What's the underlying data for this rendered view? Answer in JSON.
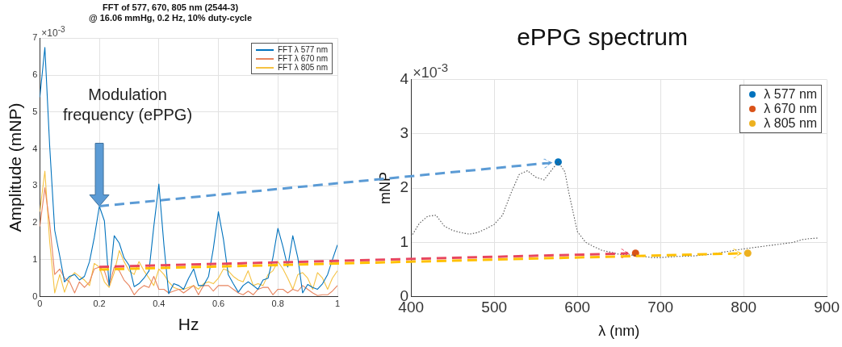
{
  "chart_data": [
    {
      "type": "line",
      "title": "FFT of 577, 670, 805 nm (2544-3)",
      "subtitle": "@ 16.06 mmHg, 0.2 Hz, 10% duty-cycle",
      "xlabel": "Hz",
      "ylabel": "Amplitude (mNP)",
      "x": [
        0,
        0.017,
        0.033,
        0.05,
        0.067,
        0.083,
        0.1,
        0.117,
        0.133,
        0.15,
        0.167,
        0.183,
        0.2,
        0.217,
        0.233,
        0.25,
        0.267,
        0.283,
        0.3,
        0.317,
        0.333,
        0.35,
        0.367,
        0.383,
        0.4,
        0.417,
        0.433,
        0.45,
        0.467,
        0.483,
        0.5,
        0.517,
        0.533,
        0.55,
        0.567,
        0.583,
        0.6,
        0.617,
        0.633,
        0.65,
        0.667,
        0.683,
        0.7,
        0.717,
        0.733,
        0.75,
        0.767,
        0.783,
        0.8,
        0.817,
        0.833,
        0.85,
        0.867,
        0.883,
        0.9,
        0.917,
        0.933,
        0.95,
        0.967,
        0.983,
        1
      ],
      "series": [
        {
          "name": "FFT λ 577 nm",
          "color": "#0072bd",
          "values": [
            5.4,
            6.75,
            4.1,
            1.8,
            1.1,
            0.4,
            0.55,
            0.6,
            0.45,
            0.55,
            0.95,
            1.6,
            2.45,
            2.05,
            0.3,
            1.65,
            1.45,
            1.05,
            0.85,
            0.27,
            0.35,
            0.5,
            0.7,
            1.9,
            3.05,
            1.4,
            0.08,
            0.35,
            0.3,
            0.2,
            0.5,
            0.75,
            0.3,
            0.3,
            0.55,
            1.3,
            2.3,
            1.55,
            0.6,
            0.35,
            0.12,
            0.3,
            0.4,
            0.3,
            0.2,
            0.45,
            0.5,
            1.05,
            1.85,
            1.35,
            0.8,
            1.65,
            1.05,
            0.1,
            0.33,
            0.25,
            0.2,
            0.35,
            0.6,
            1.0,
            1.4
          ]
        },
        {
          "name": "FFT λ 670 nm",
          "color": "#e8845e",
          "values": [
            1.9,
            2.95,
            2.0,
            0.6,
            0.75,
            0.5,
            0.4,
            0.1,
            0.4,
            0.25,
            0.4,
            0.75,
            0.8,
            0.7,
            0.3,
            0.8,
            0.7,
            0.45,
            0.3,
            0.05,
            0.2,
            0.3,
            0.25,
            0.55,
            0.2,
            0.2,
            0.1,
            0.15,
            0.2,
            0.1,
            0.2,
            0.3,
            0.05,
            0.3,
            0.3,
            0.15,
            0.3,
            0.3,
            0.3,
            0.2,
            0.1,
            0.05,
            0.15,
            0.05,
            0.2,
            0.25,
            0.25,
            0.05,
            0.2,
            0.2,
            0.1,
            0.2,
            0.15,
            0.3,
            0.2,
            0.1,
            0.03,
            0.05,
            0.05,
            0.15,
            0.3
          ]
        },
        {
          "name": "FFT λ 805 nm",
          "color": "#f5c242",
          "values": [
            2.3,
            3.4,
            1.5,
            0.1,
            0.6,
            0.12,
            0.5,
            0.65,
            0.55,
            0.45,
            0.3,
            0.9,
            0.8,
            0.4,
            0.25,
            0.65,
            1.25,
            0.95,
            0.7,
            0.6,
            0.95,
            0.7,
            0.5,
            0.3,
            0.75,
            0.6,
            0.4,
            0.25,
            0.2,
            0.2,
            0.25,
            0.3,
            0.2,
            0.35,
            0.4,
            0.35,
            0.5,
            0.75,
            0.7,
            0.55,
            0.45,
            0.4,
            0.7,
            0.3,
            0.35,
            0.3,
            0.6,
            0.7,
            0.95,
            0.75,
            0.5,
            0.2,
            0.6,
            0.65,
            0.5,
            0.2,
            0.65,
            0.5,
            0.2,
            0.5,
            0.7
          ]
        }
      ],
      "xlim": [
        0,
        1
      ],
      "xticks": [
        0,
        0.2,
        0.4,
        0.6,
        0.8,
        1
      ],
      "ylim": [
        0,
        7
      ],
      "yticks": [
        0,
        1,
        2,
        3,
        4,
        5,
        6,
        7
      ],
      "grid": true,
      "legend": "top right",
      "marker": "none",
      "annotations": [
        "×10$^{-3}$",
        "Modulation frequency (ePPG)"
      ]
    },
    {
      "type": "scatter",
      "title": "ePPG spectrum",
      "xlabel": "λ (nm)",
      "ylabel": "mNP",
      "series": [
        {
          "type": "line",
          "color": "#555555",
          "line_style": "dotted",
          "marker": "none",
          "x": [
            400,
            410,
            420,
            430,
            440,
            450,
            460,
            470,
            480,
            490,
            500,
            510,
            520,
            530,
            540,
            550,
            560,
            570,
            577,
            585,
            590,
            600,
            610,
            620,
            630,
            640,
            650,
            660,
            670,
            680,
            690,
            700,
            720,
            740,
            760,
            780,
            800,
            820,
            840,
            860,
            870,
            880,
            890
          ],
          "values": [
            1.1,
            1.35,
            1.48,
            1.5,
            1.3,
            1.22,
            1.18,
            1.15,
            1.18,
            1.25,
            1.33,
            1.5,
            1.9,
            2.25,
            2.32,
            2.2,
            2.15,
            2.35,
            2.48,
            2.3,
            1.9,
            1.2,
            1.0,
            0.92,
            0.85,
            0.82,
            0.78,
            0.77,
            0.76,
            0.74,
            0.72,
            0.72,
            0.74,
            0.75,
            0.78,
            0.83,
            0.88,
            0.92,
            0.96,
            1.0,
            1.05,
            1.07,
            1.08
          ]
        },
        {
          "name": "λ 577 nm",
          "color": "#0072bd",
          "x": [
            577
          ],
          "values": [
            2.48
          ]
        },
        {
          "name": "λ 670 nm",
          "color": "#d95319",
          "x": [
            670
          ],
          "values": [
            0.8
          ]
        },
        {
          "name": "λ 805 nm",
          "color": "#edb120",
          "x": [
            805
          ],
          "values": [
            0.8
          ]
        }
      ],
      "xlim": [
        400,
        900
      ],
      "xticks": [
        400,
        500,
        600,
        700,
        800,
        900
      ],
      "ylim": [
        0,
        4
      ],
      "yticks": [
        0,
        1,
        2,
        3,
        4
      ],
      "grid": true,
      "legend": "top right",
      "marker": "circle",
      "annotations": [
        "×10$^{-3}$"
      ]
    }
  ]
}
